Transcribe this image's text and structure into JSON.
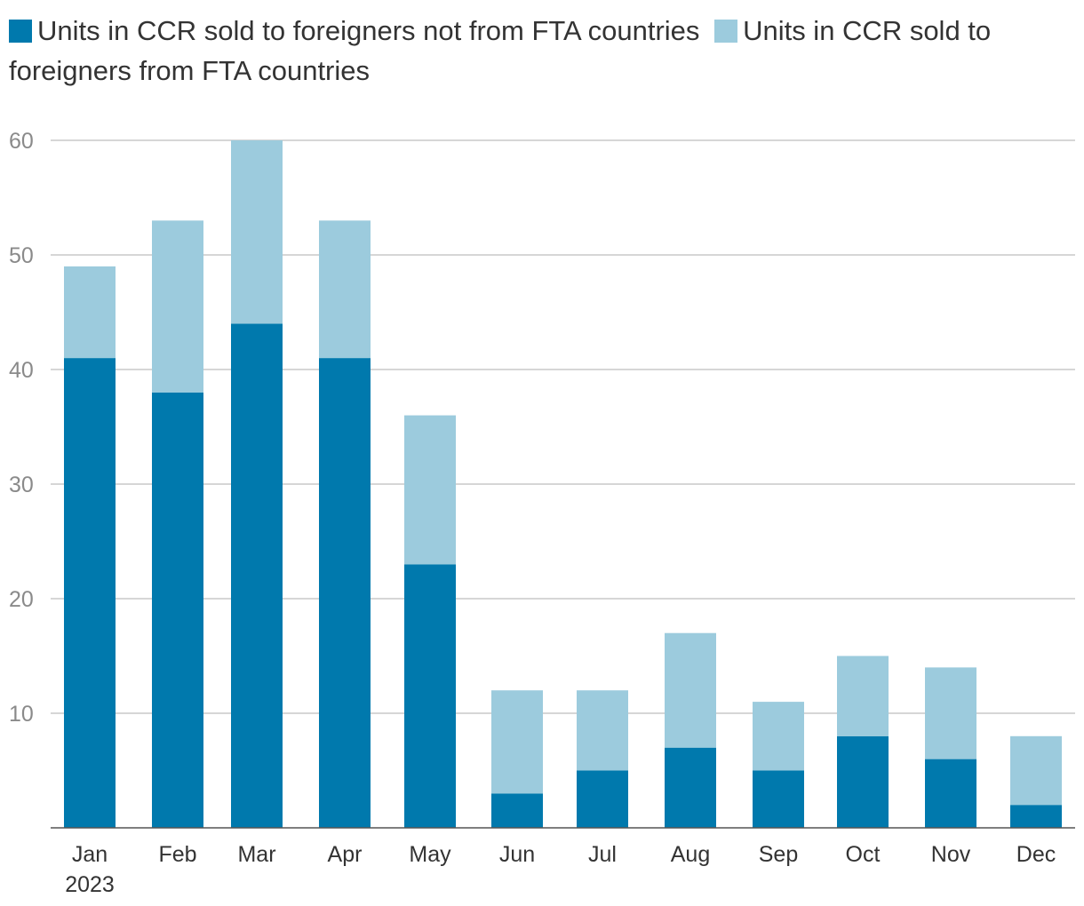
{
  "chart_data": {
    "type": "bar",
    "stacked": true,
    "title": "",
    "xlabel": "",
    "ylabel": "",
    "categories": [
      "Jan",
      "Feb",
      "Mar",
      "Apr",
      "May",
      "Jun",
      "Jul",
      "Aug",
      "Sep",
      "Oct",
      "Nov",
      "Dec"
    ],
    "year_label": "2023",
    "ylim": [
      0,
      60
    ],
    "yticks": [
      10,
      20,
      30,
      40,
      50,
      60
    ],
    "grid": true,
    "legend_position": "top",
    "series": [
      {
        "name": "Units in CCR sold to foreigners not from FTA countries",
        "color": "#0079ad",
        "values": [
          41,
          38,
          44,
          41,
          23,
          3,
          5,
          7,
          5,
          8,
          6,
          2
        ]
      },
      {
        "name": "Units in CCR sold to foreigners from FTA countries",
        "color": "#9ccbdd",
        "values": [
          8,
          15,
          16,
          12,
          13,
          9,
          7,
          10,
          6,
          7,
          8,
          6
        ]
      }
    ]
  }
}
